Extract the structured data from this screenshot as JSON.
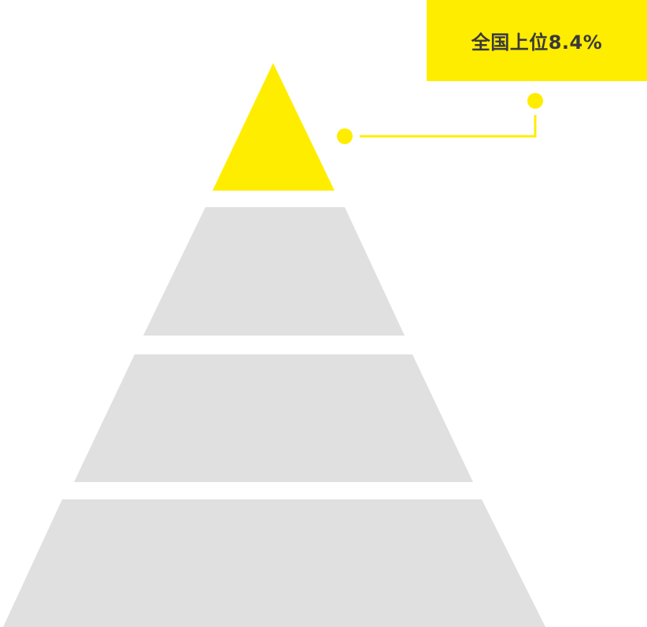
{
  "callout": {
    "label": "全国上位8.4%"
  },
  "pyramid": {
    "tiers": 4,
    "highlighted_tier": "top"
  },
  "colors": {
    "highlight": "#ffed00",
    "tier": "#e0e0e0",
    "text": "#3a3a3a",
    "background": "#ffffff"
  }
}
